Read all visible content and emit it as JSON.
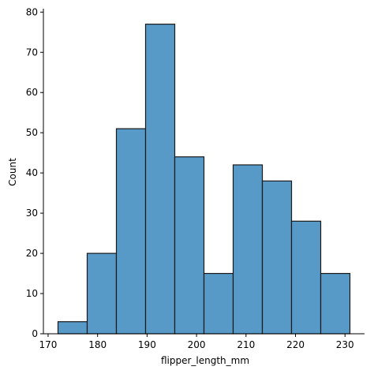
{
  "chart_data": {
    "type": "histogram",
    "x_label": "flipper_length_mm",
    "y_label": "Count",
    "bins": [
      172,
      177.9,
      183.8,
      189.7,
      195.6,
      201.5,
      207.4,
      213.3,
      219.2,
      225.1,
      231
    ],
    "values": [
      3,
      20,
      51,
      77,
      44,
      15,
      42,
      38,
      28,
      15
    ],
    "color": "#5799c7",
    "edgecolor": "#1a1a1a",
    "xlim": [
      169.05,
      233.95
    ],
    "xticks": [
      170,
      180,
      190,
      200,
      210,
      220,
      230
    ],
    "ylim": [
      0,
      80.85
    ],
    "yticks": [
      0,
      10,
      20,
      30,
      40,
      50,
      60,
      70,
      80
    ],
    "grid": false
  }
}
